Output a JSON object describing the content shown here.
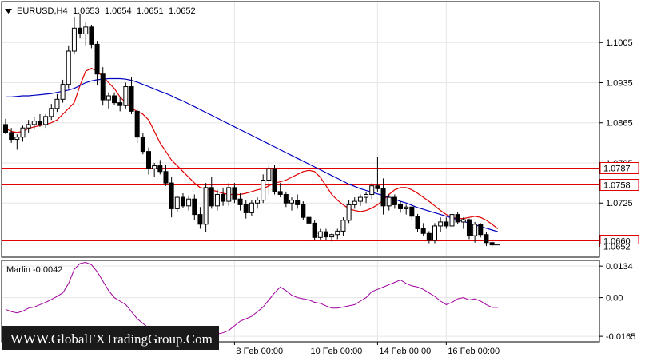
{
  "chart_data": [
    {
      "type": "candlestick",
      "title": "EURUSD,H4",
      "ohlc_readout": [
        "1.0653",
        "1.0654",
        "1.0651",
        "1.0652"
      ],
      "y_ticks": [
        1.1005,
        1.0935,
        1.0865,
        1.0795,
        1.0725
      ],
      "ylim": [
        1.0632,
        1.1075
      ],
      "current_price": 1.0652,
      "current_price_label": "1.0652",
      "horizontal_levels": [
        {
          "value": 1.0787,
          "label": "1.0787",
          "color": "#e00000"
        },
        {
          "value": 1.0758,
          "label": "1.0758",
          "color": "#e00000"
        },
        {
          "value": 1.066,
          "label": "1.0660",
          "color": "#e00000"
        }
      ],
      "moving_averages": [
        {
          "color": "#e00000",
          "values": [
            1.0855,
            1.085,
            1.0848,
            1.085,
            1.0855,
            1.0858,
            1.086,
            1.0862,
            1.0865,
            1.087,
            1.088,
            1.089,
            1.09,
            1.093,
            1.0955,
            1.096,
            1.0955,
            1.0945,
            1.0935,
            1.0925,
            1.091,
            1.09,
            1.089,
            1.0885,
            1.088,
            1.087,
            1.085,
            1.083,
            1.0815,
            1.08,
            1.079,
            1.078,
            1.077,
            1.076,
            1.0752,
            1.075,
            1.0748,
            1.0745,
            1.0742,
            1.074,
            1.074,
            1.074,
            1.0742,
            1.0745,
            1.0748,
            1.075,
            1.0755,
            1.076,
            1.0762,
            1.0765,
            1.077,
            1.0775,
            1.078,
            1.0782,
            1.078,
            1.077,
            1.0755,
            1.074,
            1.073,
            1.0722,
            1.0715,
            1.0712,
            1.071,
            1.0712,
            1.0716,
            1.0722,
            1.073,
            1.074,
            1.0748,
            1.0752,
            1.0752,
            1.0748,
            1.0742,
            1.0735,
            1.0728,
            1.072,
            1.0712,
            1.0705,
            1.07,
            1.0698,
            1.0698,
            1.07,
            1.0702,
            1.07,
            1.0695,
            1.0688,
            1.068
          ]
        },
        {
          "color": "#0000c0",
          "values": [
            1.091,
            1.091,
            1.0911,
            1.0912,
            1.0912,
            1.0913,
            1.0914,
            1.0915,
            1.0916,
            1.0918,
            1.092,
            1.0922,
            1.0925,
            1.093,
            1.0935,
            1.0938,
            1.094,
            1.0941,
            1.0942,
            1.0942,
            1.0942,
            1.0941,
            1.0939,
            1.0936,
            1.0932,
            1.0928,
            1.0924,
            1.092,
            1.0916,
            1.0912,
            1.0907,
            1.0903,
            1.0898,
            1.0893,
            1.0888,
            1.0883,
            1.0878,
            1.0873,
            1.0868,
            1.0863,
            1.0858,
            1.0853,
            1.0848,
            1.0843,
            1.0838,
            1.0833,
            1.0828,
            1.0823,
            1.0818,
            1.0813,
            1.0808,
            1.0803,
            1.0798,
            1.0793,
            1.0788,
            1.0783,
            1.0778,
            1.0773,
            1.0768,
            1.0763,
            1.0758,
            1.0754,
            1.075,
            1.0747,
            1.0744,
            1.0741,
            1.0738,
            1.0735,
            1.0732,
            1.0728,
            1.0725,
            1.0721,
            1.0717,
            1.0714,
            1.0711,
            1.0708,
            1.0705,
            1.0702,
            1.0699,
            1.0696,
            1.0693,
            1.069,
            1.0687,
            1.0684,
            1.0681,
            1.0678,
            1.0675
          ]
        }
      ],
      "candles": [
        [
          1.0862,
          1.0872,
          1.0845,
          1.0848
        ],
        [
          1.0848,
          1.0856,
          1.083,
          1.0836
        ],
        [
          1.0836,
          1.0845,
          1.0818,
          1.084
        ],
        [
          1.084,
          1.086,
          1.0832,
          1.0856
        ],
        [
          1.0856,
          1.087,
          1.0848,
          1.0862
        ],
        [
          1.0862,
          1.0875,
          1.0855,
          1.0868
        ],
        [
          1.0868,
          1.088,
          1.0858,
          1.0862
        ],
        [
          1.0862,
          1.088,
          1.0856,
          1.0876
        ],
        [
          1.0876,
          1.0898,
          1.087,
          1.089
        ],
        [
          1.089,
          1.0915,
          1.0884,
          1.0906
        ],
        [
          1.0906,
          1.094,
          1.09,
          1.0932
        ],
        [
          1.0932,
          1.1,
          1.0925,
          1.099
        ],
        [
          1.099,
          1.105,
          1.0985,
          1.103
        ],
        [
          1.103,
          1.1055,
          1.1012,
          1.102
        ],
        [
          1.102,
          1.104,
          1.1,
          1.1032
        ],
        [
          1.1032,
          1.1036,
          1.0995,
          1.1002
        ],
        [
          1.1002,
          1.1008,
          1.093,
          1.095
        ],
        [
          1.095,
          1.0962,
          1.0895,
          1.0905
        ],
        [
          1.0905,
          1.0918,
          1.089,
          1.0912
        ],
        [
          1.0912,
          1.0918,
          1.0896,
          1.09
        ],
        [
          1.09,
          1.091,
          1.0885,
          1.0895
        ],
        [
          1.0895,
          1.0935,
          1.089,
          1.0928
        ],
        [
          1.0928,
          1.0945,
          1.088,
          1.0885
        ],
        [
          1.0885,
          1.089,
          1.083,
          1.084
        ],
        [
          1.084,
          1.0848,
          1.081,
          1.0815
        ],
        [
          1.0815,
          1.0822,
          1.0775,
          1.0785
        ],
        [
          1.0785,
          1.0795,
          1.077,
          1.079
        ],
        [
          1.079,
          1.08,
          1.0775,
          1.078
        ],
        [
          1.078,
          1.0792,
          1.0755,
          1.076
        ],
        [
          1.076,
          1.077,
          1.07,
          1.0715
        ],
        [
          1.0715,
          1.0738,
          1.071,
          1.0735
        ],
        [
          1.0735,
          1.0742,
          1.0716,
          1.072
        ],
        [
          1.072,
          1.0738,
          1.0712,
          1.0732
        ],
        [
          1.0732,
          1.074,
          1.0695,
          1.0705
        ],
        [
          1.0705,
          1.0718,
          1.068,
          1.0688
        ],
        [
          1.0688,
          1.076,
          1.0675,
          1.0752
        ],
        [
          1.0752,
          1.077,
          1.0715,
          1.072
        ],
        [
          1.072,
          1.0748,
          1.0712,
          1.074
        ],
        [
          1.074,
          1.0752,
          1.072,
          1.0728
        ],
        [
          1.0728,
          1.076,
          1.072,
          1.0752
        ],
        [
          1.0752,
          1.076,
          1.0725,
          1.0732
        ],
        [
          1.0732,
          1.0742,
          1.0712,
          1.0722
        ],
        [
          1.0722,
          1.073,
          1.0698,
          1.0708
        ],
        [
          1.0708,
          1.073,
          1.0702,
          1.0725
        ],
        [
          1.0725,
          1.0735,
          1.0715,
          1.073
        ],
        [
          1.073,
          1.0775,
          1.0725,
          1.0765
        ],
        [
          1.0765,
          1.079,
          1.074,
          1.0785
        ],
        [
          1.0785,
          1.0792,
          1.074,
          1.0745
        ],
        [
          1.0745,
          1.076,
          1.0735,
          1.074
        ],
        [
          1.074,
          1.0745,
          1.0718,
          1.0725
        ],
        [
          1.0725,
          1.0735,
          1.0712,
          1.073
        ],
        [
          1.073,
          1.074,
          1.0715,
          1.0722
        ],
        [
          1.0722,
          1.0728,
          1.0695,
          1.07
        ],
        [
          1.07,
          1.071,
          1.0685,
          1.069
        ],
        [
          1.069,
          1.0695,
          1.066,
          1.0665
        ],
        [
          1.0665,
          1.068,
          1.066,
          1.0675
        ],
        [
          1.0675,
          1.068,
          1.066,
          1.0666
        ],
        [
          1.0666,
          1.0672,
          1.0658,
          1.067
        ],
        [
          1.067,
          1.068,
          1.0662,
          1.0676
        ],
        [
          1.0676,
          1.07,
          1.0668,
          1.0695
        ],
        [
          1.0695,
          1.073,
          1.069,
          1.0722
        ],
        [
          1.0722,
          1.0735,
          1.0715,
          1.0728
        ],
        [
          1.0728,
          1.074,
          1.072,
          1.0735
        ],
        [
          1.0735,
          1.0745,
          1.0725,
          1.074
        ],
        [
          1.074,
          1.076,
          1.0732,
          1.0755
        ],
        [
          1.0755,
          1.0805,
          1.0745,
          1.075
        ],
        [
          1.075,
          1.0768,
          1.0705,
          1.072
        ],
        [
          1.072,
          1.074,
          1.0712,
          1.0735
        ],
        [
          1.0735,
          1.074,
          1.0715,
          1.0722
        ],
        [
          1.0722,
          1.0728,
          1.0708,
          1.0715
        ],
        [
          1.0715,
          1.0722,
          1.0705,
          1.0718
        ],
        [
          1.0718,
          1.072,
          1.0695,
          1.0702
        ],
        [
          1.0702,
          1.0706,
          1.0675,
          1.068
        ],
        [
          1.068,
          1.069,
          1.0668,
          1.0672
        ],
        [
          1.0672,
          1.0676,
          1.0655,
          1.066
        ],
        [
          1.066,
          1.069,
          1.0655,
          1.0685
        ],
        [
          1.0685,
          1.07,
          1.0675,
          1.0692
        ],
        [
          1.0692,
          1.07,
          1.068,
          1.0685
        ],
        [
          1.0685,
          1.0712,
          1.0682,
          1.0705
        ],
        [
          1.0705,
          1.071,
          1.0688,
          1.0692
        ],
        [
          1.0692,
          1.07,
          1.068,
          1.0696
        ],
        [
          1.0696,
          1.0698,
          1.0662,
          1.0668
        ],
        [
          1.0668,
          1.0692,
          1.0656,
          1.0688
        ],
        [
          1.0688,
          1.069,
          1.0665,
          1.067
        ],
        [
          1.067,
          1.0675,
          1.065,
          1.0656
        ],
        [
          1.0656,
          1.0662,
          1.0648,
          1.0652
        ]
      ],
      "x_labels": [
        {
          "label": "8 Feb 00:00",
          "index": 40
        },
        {
          "label": "10 Feb 00:00",
          "index": 53
        },
        {
          "label": "14 Feb 00:00",
          "index": 65
        },
        {
          "label": "16 Feb 00:00",
          "index": 77
        }
      ]
    },
    {
      "type": "line",
      "title": "Marlin -0.0042",
      "y_ticks": [
        {
          "value": 0.0134,
          "label": "0.0134"
        },
        {
          "value": 0.0,
          "label": "0.00"
        },
        {
          "value": -0.0165,
          "label": "-0.0165"
        }
      ],
      "ylim": [
        -0.0185,
        0.0155
      ],
      "series": [
        {
          "color": "#a000a0",
          "values": [
            -0.005,
            -0.006,
            -0.0065,
            -0.0058,
            -0.0045,
            -0.004,
            -0.003,
            -0.002,
            -0.0008,
            0.0005,
            0.002,
            0.006,
            0.012,
            0.0145,
            0.015,
            0.014,
            0.011,
            0.007,
            0.003,
            0.0,
            -0.0015,
            -0.003,
            -0.006,
            -0.009,
            -0.011,
            -0.013,
            -0.015,
            -0.016,
            -0.015,
            -0.0158,
            -0.0165,
            -0.017,
            -0.0172,
            -0.0168,
            -0.016,
            -0.016,
            -0.0162,
            -0.0155,
            -0.015,
            -0.014,
            -0.012,
            -0.01,
            -0.009,
            -0.008,
            -0.006,
            -0.004,
            -0.001,
            0.002,
            0.0045,
            0.003,
            0.001,
            0.0,
            -0.0005,
            -0.001,
            -0.002,
            -0.0025,
            -0.0035,
            -0.0045,
            -0.0045,
            -0.004,
            -0.0035,
            -0.003,
            -0.0015,
            0.0,
            0.0025,
            0.0035,
            0.0045,
            0.0055,
            0.0065,
            0.0075,
            0.006,
            0.005,
            0.0045,
            0.0035,
            0.002,
            0.0005,
            -0.0015,
            -0.003,
            -0.002,
            -0.0005,
            0.0,
            -0.001,
            -0.0005,
            -0.0015,
            -0.003,
            -0.0042,
            -0.0042
          ]
        }
      ]
    }
  ],
  "watermark": "WWW.GlobalFXTradingGroup.Com",
  "colors": {
    "bull_candle": "#ffffff",
    "bear_candle": "#000000",
    "grid": "#e6e6e6",
    "frame": "#000000"
  }
}
